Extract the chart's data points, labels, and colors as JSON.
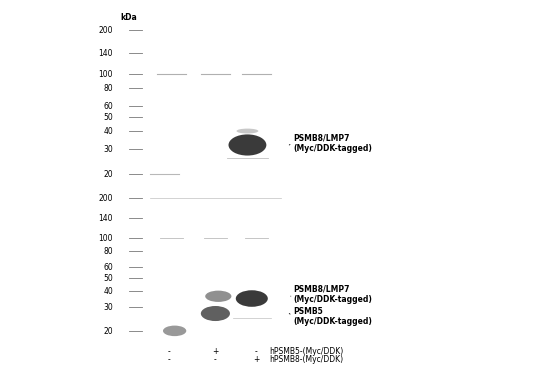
{
  "figure_bg": "#ffffff",
  "panel_bg": "#c8c8c8",
  "ladder_bg": "#b8b8b8",
  "kda_label": "kDa",
  "ladder_marks": [
    200,
    140,
    100,
    80,
    60,
    50,
    40,
    30,
    20
  ],
  "font_size_kda": 5.5,
  "font_size_band": 5.5,
  "font_size_bottom": 5.5,
  "panel1_label": "PSMB8/LMP7\n(Myc/DDK-tagged)",
  "panel2_label_upper": "PSMB8/LMP7\n(Myc/DDK-tagged)",
  "panel2_label_lower": "PSMB5\n(Myc/DDK-tagged)",
  "bottom_row1": [
    "-",
    "+",
    "-"
  ],
  "bottom_row2": [
    "-",
    "-",
    "+"
  ],
  "bottom_label1": "hPSMB5-(Myc/DDK)",
  "bottom_label2": "hPSMB8-(Myc/DDK)"
}
